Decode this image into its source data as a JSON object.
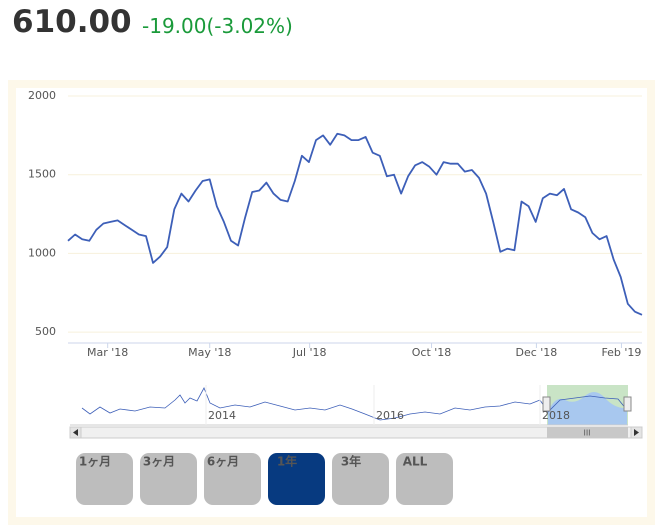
{
  "header": {
    "price": "610.00",
    "change": "-19.00(-3.02%)"
  },
  "chart_data": {
    "type": "line",
    "series": [
      {
        "color": "#3d5fb8",
        "values": [
          1080,
          1120,
          1090,
          1080,
          1150,
          1190,
          1200,
          1210,
          1180,
          1150,
          1120,
          1110,
          940,
          980,
          1040,
          1280,
          1380,
          1330,
          1400,
          1460,
          1470,
          1300,
          1200,
          1080,
          1050,
          1230,
          1390,
          1400,
          1450,
          1380,
          1340,
          1330,
          1460,
          1620,
          1580,
          1720,
          1750,
          1690,
          1760,
          1750,
          1720,
          1720,
          1740,
          1640,
          1620,
          1490,
          1500,
          1380,
          1490,
          1560,
          1580,
          1550,
          1500,
          1580,
          1570,
          1570,
          1520,
          1530,
          1480,
          1380,
          1200,
          1010,
          1030,
          1020,
          1330,
          1300,
          1200,
          1350,
          1380,
          1370,
          1410,
          1280,
          1260,
          1230,
          1130,
          1090,
          1110,
          960,
          850,
          680,
          630,
          610
        ]
      }
    ],
    "ylim": [
      450,
      2000
    ],
    "yticks": [
      500,
      1000,
      1500,
      2000
    ],
    "grid": true,
    "xticks": [
      {
        "value": 5.6,
        "label": "Mar '18"
      },
      {
        "value": 20,
        "label": "May '18"
      },
      {
        "value": 34.1,
        "label": "Jul '18"
      },
      {
        "value": 51.3,
        "label": "Oct '18"
      },
      {
        "value": 66.1,
        "label": "Dec '18"
      },
      {
        "value": 78.1,
        "label": "Feb '19"
      }
    ],
    "navigator": {
      "labels": [
        "2014",
        "2016",
        "2018"
      ]
    },
    "range_buttons": [
      "1ヶ月",
      "3ヶ月",
      "6ヶ月",
      "1年",
      "3年",
      "ALL"
    ],
    "selected_range": 3
  }
}
